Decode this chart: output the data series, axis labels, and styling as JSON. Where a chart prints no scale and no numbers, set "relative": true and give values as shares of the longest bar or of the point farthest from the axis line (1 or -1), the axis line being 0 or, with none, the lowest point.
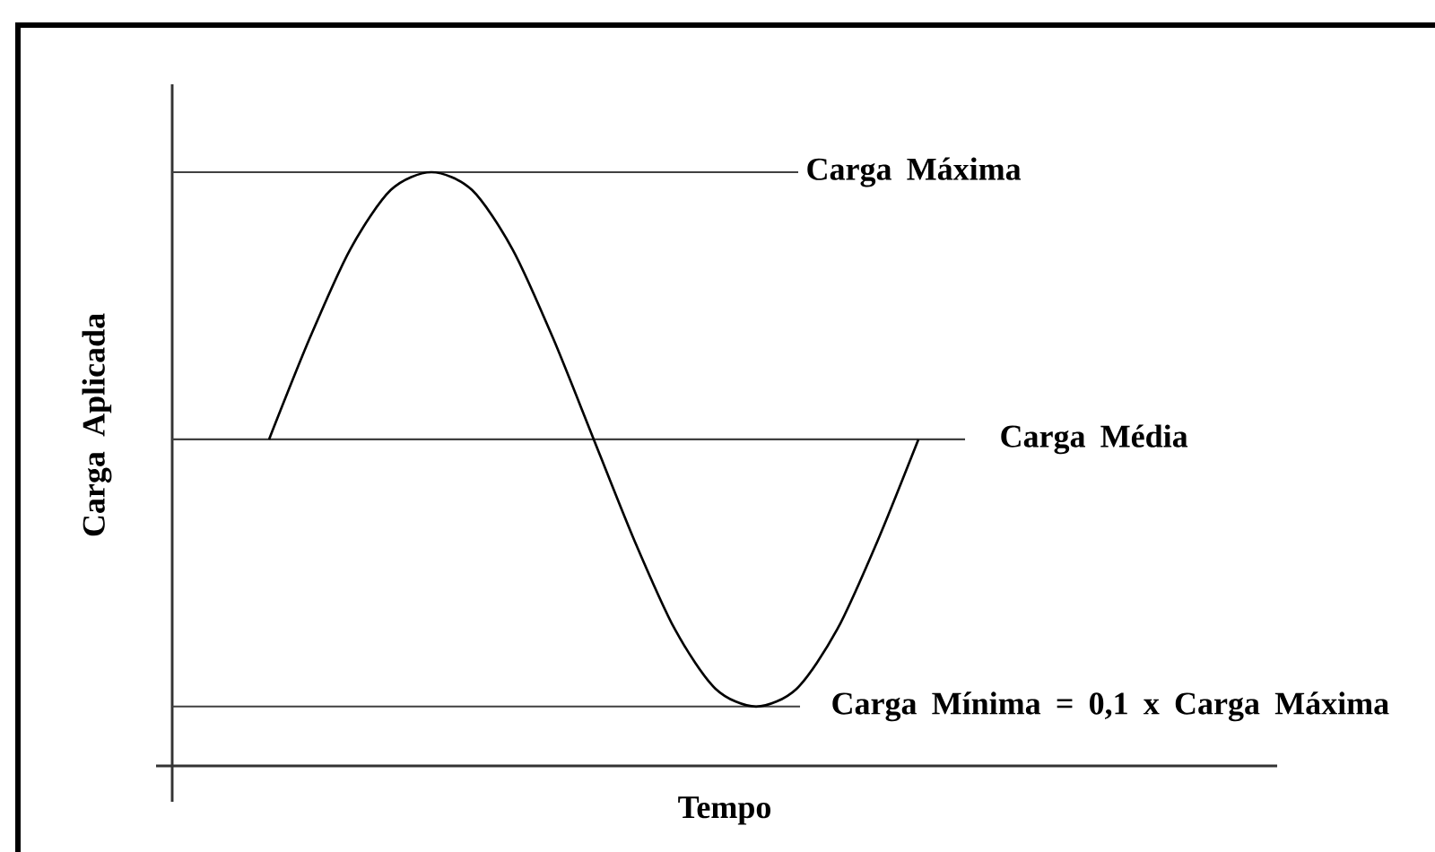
{
  "chart_data": {
    "type": "line",
    "relative": true,
    "xlabel": "Tempo",
    "ylabel": "Carga Aplicada",
    "categories": [
      null,
      null,
      null,
      null,
      null,
      null,
      null,
      null,
      null,
      null,
      null,
      null,
      null,
      null,
      null,
      null,
      null
    ],
    "values": [
      0.55,
      0.72,
      0.87,
      0.97,
      1,
      0.97,
      0.87,
      0.72,
      0.55,
      0.38,
      0.23,
      0.13,
      0.1,
      0.13,
      0.23,
      0.38,
      0.55
    ],
    "color": "#000000",
    "marker": "none",
    "line_style": "solid",
    "ref_lines": [
      {
        "axis": "y",
        "value": 1,
        "label": "Carga Máxima",
        "color": "#404040"
      },
      {
        "axis": "y",
        "value": 0.55,
        "label": "Carga Média",
        "color": "#404040"
      },
      {
        "axis": "y",
        "value": 0.1,
        "label": "Carga Mínima = 0,1 x Carga Máxima",
        "color": "#404040"
      }
    ]
  }
}
